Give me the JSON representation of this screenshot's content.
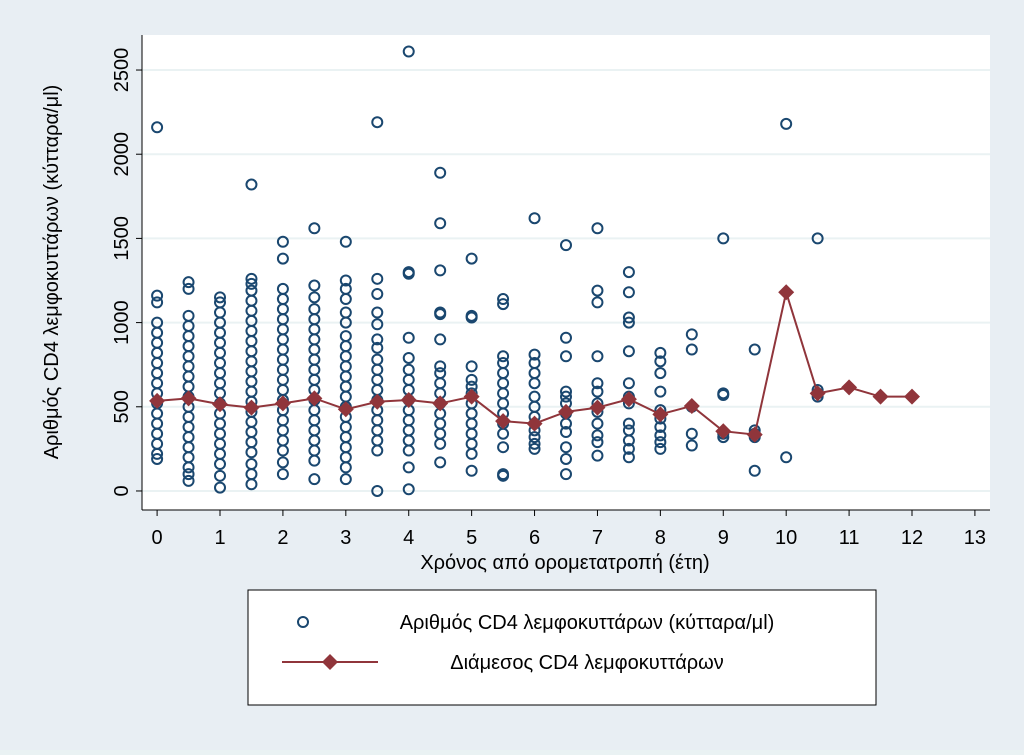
{
  "chart_data": {
    "type": "scatter",
    "x_label": "Χρόνος από ορομετατροπή (έτη)",
    "y_label": "Αριθμός CD4 λεμφοκυττάρων (κύτταρα/μl)",
    "xlim": [
      -0.24,
      13.24
    ],
    "xticks": [
      0,
      1,
      2,
      3,
      4,
      5,
      6,
      7,
      8,
      9,
      10,
      11,
      12,
      13
    ],
    "ylim": [
      -113,
      2708
    ],
    "yticks": [
      0,
      500,
      1000,
      1500,
      2000,
      2500
    ],
    "grid": true,
    "series": [
      {
        "name": "Αριθμός CD4 λεμφοκυττάρων (κύτταρα/μl)",
        "type": "scatter",
        "color": "#1a476f",
        "groups": [
          {
            "x": 0,
            "values": [
              2160,
              1160,
              1120,
              1000,
              940,
              880,
              820,
              760,
              700,
              640,
              580,
              520,
              460,
              400,
              340,
              280,
              220,
              190
            ]
          },
          {
            "x": 0.5,
            "values": [
              1240,
              1200,
              1040,
              980,
              920,
              860,
              800,
              740,
              680,
              620,
              560,
              500,
              440,
              380,
              320,
              260,
              200,
              140,
              100,
              60
            ]
          },
          {
            "x": 1,
            "values": [
              1150,
              1120,
              1060,
              1000,
              940,
              880,
              820,
              760,
              700,
              640,
              580,
              520,
              460,
              400,
              340,
              280,
              220,
              160,
              90,
              20
            ]
          },
          {
            "x": 1.5,
            "values": [
              1820,
              1260,
              1230,
              1190,
              1130,
              1070,
              1010,
              950,
              890,
              830,
              770,
              710,
              650,
              590,
              530,
              470,
              410,
              350,
              290,
              230,
              160,
              100,
              40
            ]
          },
          {
            "x": 2,
            "values": [
              1480,
              1380,
              1200,
              1140,
              1080,
              1020,
              960,
              900,
              840,
              780,
              720,
              660,
              600,
              540,
              480,
              420,
              360,
              300,
              240,
              170,
              100
            ]
          },
          {
            "x": 2.5,
            "values": [
              1560,
              1220,
              1150,
              1080,
              1020,
              960,
              900,
              840,
              780,
              720,
              660,
              600,
              540,
              480,
              420,
              360,
              300,
              240,
              180,
              70
            ]
          },
          {
            "x": 3,
            "values": [
              1480,
              1250,
              1200,
              1140,
              1060,
              1000,
              920,
              860,
              800,
              740,
              680,
              620,
              560,
              500,
              440,
              380,
              320,
              260,
              200,
              140,
              70
            ]
          },
          {
            "x": 3.5,
            "values": [
              2190,
              1260,
              1170,
              1060,
              990,
              900,
              850,
              780,
              720,
              660,
              600,
              540,
              480,
              420,
              360,
              300,
              240,
              0
            ]
          },
          {
            "x": 4,
            "values": [
              2610,
              1300,
              1290,
              910,
              790,
              720,
              660,
              600,
              540,
              480,
              420,
              360,
              300,
              240,
              140,
              10
            ]
          },
          {
            "x": 4.5,
            "values": [
              1890,
              1590,
              1310,
              1060,
              1050,
              900,
              740,
              700,
              640,
              580,
              520,
              460,
              400,
              340,
              280,
              170
            ]
          },
          {
            "x": 5,
            "values": [
              1380,
              1040,
              1030,
              740,
              660,
              620,
              580,
              520,
              460,
              400,
              340,
              280,
              220,
              120
            ]
          },
          {
            "x": 5.5,
            "values": [
              1140,
              1110,
              800,
              760,
              700,
              640,
              580,
              520,
              460,
              400,
              340,
              260,
              100,
              90
            ]
          },
          {
            "x": 6,
            "values": [
              1620,
              810,
              760,
              700,
              640,
              560,
              500,
              440,
              400,
              360,
              320,
              280,
              250
            ]
          },
          {
            "x": 6.5,
            "values": [
              1460,
              910,
              800,
              590,
              560,
              520,
              460,
              400,
              350,
              260,
              190,
              100
            ]
          },
          {
            "x": 7,
            "values": [
              1560,
              1190,
              1120,
              800,
              640,
              590,
              520,
              470,
              400,
              330,
              290,
              210
            ]
          },
          {
            "x": 7.5,
            "values": [
              1300,
              1180,
              1030,
              1000,
              830,
              640,
              560,
              520,
              400,
              360,
              300,
              250,
              200
            ]
          },
          {
            "x": 8,
            "values": [
              820,
              770,
              700,
              590,
              480,
              430,
              380,
              330,
              290,
              250
            ]
          },
          {
            "x": 8.5,
            "values": [
              930,
              840,
              500,
              340,
              270
            ]
          },
          {
            "x": 9,
            "values": [
              1500,
              580,
              570,
              340,
              320
            ]
          },
          {
            "x": 9.5,
            "values": [
              840,
              360,
              340,
              320,
              120
            ]
          },
          {
            "x": 10,
            "values": [
              2180,
              200
            ]
          },
          {
            "x": 10.5,
            "values": [
              1500,
              600,
              580,
              560
            ]
          }
        ]
      },
      {
        "name": "Διάμεσος CD4 λεμφοκυττάρων",
        "type": "line",
        "color": "#90353b",
        "x": [
          0,
          0.5,
          1,
          1.5,
          2,
          2.5,
          3,
          3.5,
          4,
          4.5,
          5,
          5.5,
          6,
          6.5,
          7,
          7.5,
          8,
          8.5,
          9,
          9.5,
          10,
          10.5,
          11,
          11.5,
          12
        ],
        "values": [
          535,
          550,
          515,
          495,
          520,
          550,
          485,
          530,
          540,
          520,
          560,
          415,
          400,
          470,
          495,
          545,
          455,
          505,
          355,
          335,
          1180,
          580,
          615,
          560,
          560
        ]
      }
    ]
  }
}
